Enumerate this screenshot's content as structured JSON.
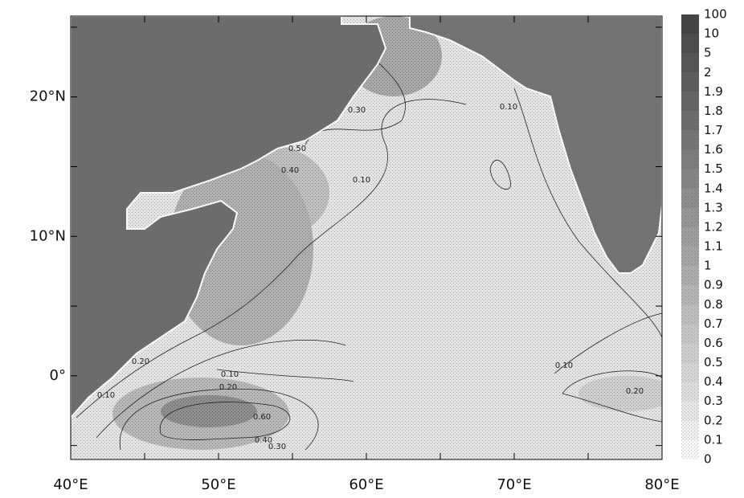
{
  "map": {
    "xlim": [
      40,
      80
    ],
    "ylim": [
      -6,
      25.8
    ],
    "xticks": [
      {
        "value": 40,
        "label": "40°E"
      },
      {
        "value": 50,
        "label": "50°E"
      },
      {
        "value": 60,
        "label": "60°E"
      },
      {
        "value": 70,
        "label": "70°E"
      },
      {
        "value": 80,
        "label": "80°E"
      }
    ],
    "yticks": [
      {
        "value": 0,
        "label": "0°"
      },
      {
        "value": 10,
        "label": "10°N"
      },
      {
        "value": 20,
        "label": "20°N"
      }
    ],
    "xminor": [
      45,
      55,
      65,
      75
    ],
    "yminor": [
      -5,
      5,
      15,
      25
    ],
    "colorbar_labels": [
      "100",
      "10",
      "5",
      "2",
      "1.9",
      "1.8",
      "1.7",
      "1.6",
      "1.5",
      "1.4",
      "1.3",
      "1.2",
      "1.1",
      "1",
      "0.9",
      "0.8",
      "0.7",
      "0.6",
      "0.5",
      "0.4",
      "0.3",
      "0.2",
      "0.1",
      "0"
    ],
    "contour_labels": [
      "0.10",
      "0.20",
      "0.10",
      "0.20",
      "0.60",
      "0.40",
      "0.30",
      "0.30",
      "0.10",
      "0.10",
      "0.10",
      "0.20",
      "0.50",
      "0.40"
    ]
  }
}
